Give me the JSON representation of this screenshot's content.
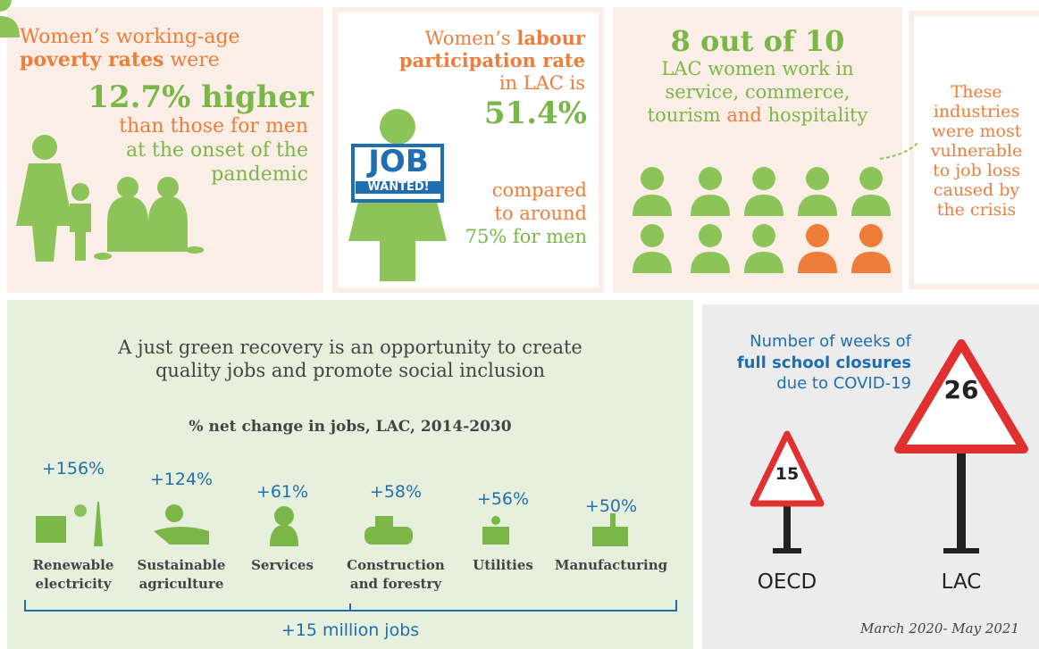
{
  "poverty": {
    "intro": "Women’s working-age",
    "bold": "poverty rates",
    "were": "were",
    "highlight": "12.7% higher",
    "line1": "than those for men",
    "line2": "at the onset of the",
    "line3": "pandemic"
  },
  "labour": {
    "intro": "Women’s",
    "bold1": "labour",
    "bold2": "participation rate",
    "line": "in LAC is",
    "highlight": "51.4%",
    "sign1": "JOB",
    "sign2": "WANTED!",
    "cmp1": "compared",
    "cmp2": "to around",
    "cmp3": "75% for men"
  },
  "sectors": {
    "highlight": "8 out of 10",
    "line1": "LAC women work in",
    "line2": "service, commerce,",
    "line3a": "tourism",
    "line3b": "and",
    "line3c": "hospitality"
  },
  "vulnerable": {
    "lines": [
      "These",
      "industries",
      "were most",
      "vulnerable",
      "to job loss",
      "caused by",
      "the crisis"
    ]
  },
  "green": {
    "title1": "A just green recovery is an opportunity to create",
    "title2": "quality jobs and promote social inclusion",
    "subtitle": "% net change in jobs, LAC, 2014-2030",
    "items": [
      {
        "change": "+156%",
        "label": [
          "Renewable",
          "electricity"
        ]
      },
      {
        "change": "+124%",
        "label": [
          "Sustainable",
          "agriculture"
        ]
      },
      {
        "change": "+61%",
        "label": [
          "Services"
        ]
      },
      {
        "change": "+58%",
        "label": [
          "Construction",
          "and forestry"
        ]
      },
      {
        "change": "+56%",
        "label": [
          "Utilities"
        ]
      },
      {
        "change": "+50%",
        "label": [
          "Manufacturing"
        ]
      }
    ],
    "total": "+15 million jobs"
  },
  "school": {
    "line1": "Number of weeks of",
    "bold": "full school closures",
    "line3": "due to COVID-19",
    "oecd_value": "15",
    "lac_value": "26",
    "oecd": "OECD",
    "lac": "LAC",
    "period": "March 2020- May 2021"
  }
}
